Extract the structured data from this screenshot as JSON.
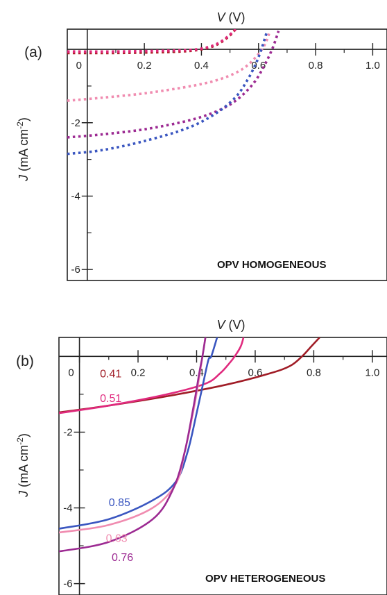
{
  "chart_data": [
    {
      "type": "line",
      "panel_label": "(a)",
      "xlabel_italic": "V",
      "xlabel_unit": " (V)",
      "ylabel": "J (mA cm-2)",
      "xlim": [
        -0.07,
        1.05
      ],
      "ylim": [
        -6.3,
        0.55
      ],
      "xticks": [
        0,
        0.2,
        0.4,
        0.6,
        0.8,
        1.0
      ],
      "xtick_labels": [
        "0",
        "0.2",
        "0.4",
        "0.6",
        "0.8",
        "1.0"
      ],
      "yticks": [
        -2,
        -4,
        -6
      ],
      "ytick_labels": [
        "-2",
        "-4",
        "-6"
      ],
      "line_style": "dotted",
      "annotation": "OPV HOMOGENEOUS",
      "series": [
        {
          "color": "#b0202a",
          "x": [
            -0.07,
            0.1,
            0.25,
            0.35,
            0.4,
            0.44,
            0.47,
            0.5,
            0.52
          ],
          "y": [
            -0.1,
            -0.1,
            -0.08,
            -0.05,
            0.0,
            0.08,
            0.2,
            0.38,
            0.55
          ]
        },
        {
          "color": "#e0287a",
          "x": [
            -0.07,
            0.1,
            0.25,
            0.35,
            0.4,
            0.44,
            0.47,
            0.5,
            0.52
          ],
          "y": [
            -0.06,
            -0.06,
            -0.04,
            -0.02,
            0.02,
            0.1,
            0.22,
            0.4,
            0.55
          ]
        },
        {
          "color": "#f08cb0",
          "x": [
            -0.07,
            0.05,
            0.2,
            0.35,
            0.45,
            0.53,
            0.58,
            0.62,
            0.64
          ],
          "y": [
            -1.4,
            -1.32,
            -1.2,
            -1.02,
            -0.85,
            -0.6,
            -0.3,
            0.1,
            0.5
          ]
        },
        {
          "color": "#9c2a92",
          "x": [
            -0.07,
            0.05,
            0.2,
            0.35,
            0.45,
            0.52,
            0.58,
            0.62,
            0.65,
            0.67
          ],
          "y": [
            -2.4,
            -2.32,
            -2.18,
            -1.95,
            -1.7,
            -1.4,
            -0.95,
            -0.45,
            0.05,
            0.5
          ]
        },
        {
          "color": "#3a56c0",
          "x": [
            -0.07,
            0.05,
            0.2,
            0.35,
            0.45,
            0.52,
            0.56,
            0.59,
            0.61,
            0.63
          ],
          "y": [
            -2.85,
            -2.75,
            -2.5,
            -2.15,
            -1.75,
            -1.3,
            -0.85,
            -0.4,
            0.0,
            0.5
          ]
        }
      ]
    },
    {
      "type": "line",
      "panel_label": "(b)",
      "xlabel_italic": "V",
      "xlabel_unit": " (V)",
      "ylabel": "J (mA cm-2)",
      "xlim": [
        -0.07,
        1.05
      ],
      "ylim": [
        -6.3,
        0.5
      ],
      "xticks": [
        0,
        0.2,
        0.4,
        0.6,
        0.8,
        1.0
      ],
      "xtick_labels": [
        "0",
        "0.2",
        "0.4",
        "0.6",
        "0.8",
        "1.0"
      ],
      "yticks": [
        -2,
        -4,
        -6
      ],
      "ytick_labels": [
        "-2",
        "-4",
        "-6"
      ],
      "line_style": "solid",
      "annotation": "OPV HETEROGENEOUS",
      "series": [
        {
          "name": "0.41",
          "color": "#a01c26",
          "x": [
            -0.07,
            0.1,
            0.3,
            0.5,
            0.65,
            0.72,
            0.76,
            0.79,
            0.82
          ],
          "y": [
            -1.48,
            -1.3,
            -1.05,
            -0.75,
            -0.45,
            -0.25,
            0.0,
            0.25,
            0.5
          ]
        },
        {
          "name": "0.51",
          "color": "#e02a7e",
          "x": [
            -0.07,
            0.1,
            0.3,
            0.43,
            0.48,
            0.51,
            0.53,
            0.55,
            0.56
          ],
          "y": [
            -1.5,
            -1.3,
            -1.0,
            -0.72,
            -0.45,
            -0.2,
            0.0,
            0.25,
            0.5
          ]
        },
        {
          "name": "0.85",
          "color": "#3a56c0",
          "x": [
            -0.07,
            0.1,
            0.25,
            0.33,
            0.37,
            0.4,
            0.42,
            0.44,
            0.45,
            0.47
          ],
          "y": [
            -4.55,
            -4.3,
            -3.8,
            -3.3,
            -2.5,
            -1.5,
            -0.8,
            -0.1,
            0.0,
            0.5
          ]
        },
        {
          "name": "0.63",
          "color": "#f08cb0",
          "x": [
            -0.07,
            0.1,
            0.25,
            0.33,
            0.36,
            0.39,
            0.41,
            0.42,
            0.43
          ],
          "y": [
            -4.65,
            -4.45,
            -4.0,
            -3.35,
            -2.5,
            -1.4,
            -0.5,
            0.0,
            0.5
          ]
        },
        {
          "name": "0.76",
          "color": "#9c2a92",
          "x": [
            -0.07,
            0.1,
            0.25,
            0.32,
            0.36,
            0.39,
            0.41,
            0.42,
            0.43
          ],
          "y": [
            -5.15,
            -4.9,
            -4.3,
            -3.5,
            -2.5,
            -1.3,
            -0.4,
            0.0,
            0.5
          ]
        }
      ],
      "series_labels": [
        {
          "name": "0.41",
          "color": "#a01c26",
          "x": 0.07,
          "y": -0.55
        },
        {
          "name": "0.51",
          "color": "#e02a7e",
          "x": 0.07,
          "y": -1.2
        },
        {
          "name": "0.85",
          "color": "#3a56c0",
          "x": 0.1,
          "y": -3.95
        },
        {
          "name": "0.63",
          "color": "#f08cb0",
          "x": 0.09,
          "y": -4.9
        },
        {
          "name": "0.76",
          "color": "#9c2a92",
          "x": 0.11,
          "y": -5.4
        }
      ]
    }
  ]
}
